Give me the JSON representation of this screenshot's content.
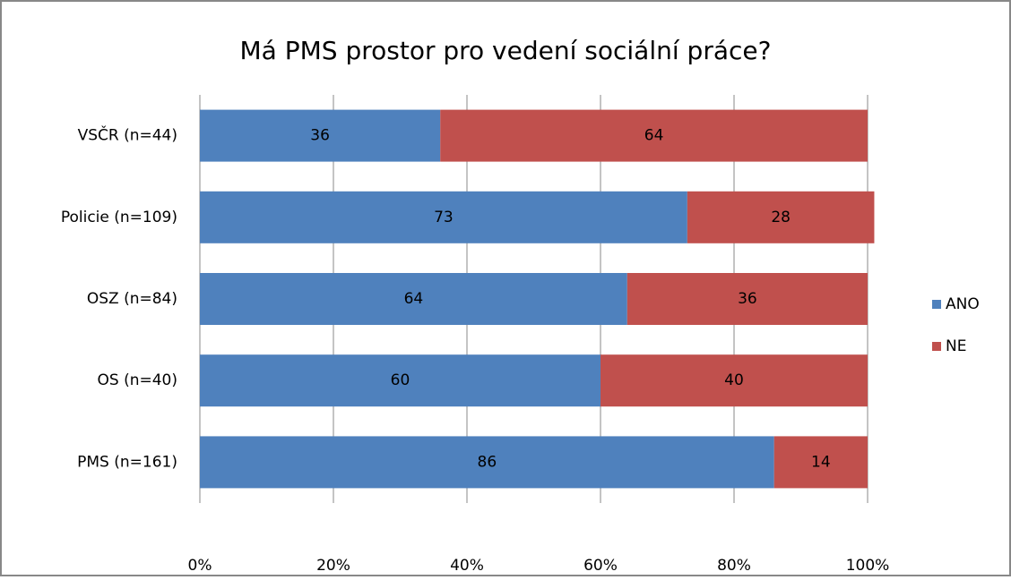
{
  "chart_data": {
    "type": "bar",
    "orientation": "horizontal",
    "stacked": true,
    "title": "Má PMS prostor pro vedení sociální práce?",
    "categories": [
      "VSČR (n=44)",
      "Policie (n=109)",
      "OSZ (n=84)",
      "OS (n=40)",
      "PMS (n=161)"
    ],
    "series": [
      {
        "name": "ANO",
        "color": "#4f81bd",
        "values": [
          36,
          73,
          64,
          60,
          86
        ]
      },
      {
        "name": "NE",
        "color": "#c0504d",
        "values": [
          64,
          28,
          36,
          40,
          14
        ]
      }
    ],
    "xlim": [
      0,
      100
    ],
    "xticks": [
      {
        "value": 0,
        "label": "0%"
      },
      {
        "value": 20,
        "label": "20%"
      },
      {
        "value": 40,
        "label": "40%"
      },
      {
        "value": 60,
        "label": "60%"
      },
      {
        "value": 80,
        "label": "80%"
      },
      {
        "value": 100,
        "label": "100%"
      }
    ],
    "grid": true,
    "legend": "right"
  }
}
